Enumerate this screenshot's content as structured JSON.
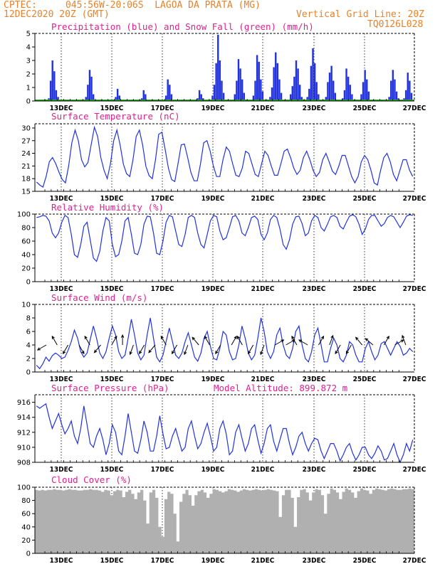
{
  "header": {
    "source": "CPTEC:",
    "location": "045:56W-20:06S  LAGOA DA PRATA (MG)",
    "run": "12DEC2020 20Z (GMT)",
    "grid_note": "Vertical Grid Line: 20Z",
    "model": "TQ0126L028"
  },
  "x_day_labels": [
    "13DEC",
    "15DEC",
    "17DEC",
    "19DEC",
    "21DEC",
    "23DEC",
    "25DEC",
    "27DEC"
  ],
  "colors": {
    "line": "#2233dd",
    "precip": "#2233dd",
    "snow": "#22aa22",
    "cloud": "#b0b0b0",
    "title": "#e0208f",
    "header": "#e8822a"
  },
  "chart_data": [
    {
      "type": "bar",
      "title": "Precipitation (blue) and Snow Fall (green) (mm/h)",
      "ylim": [
        0,
        5
      ],
      "yticks": [
        0,
        1,
        2,
        3,
        4,
        5
      ],
      "series": [
        {
          "name": "Precipitation",
          "values": [
            0,
            0,
            0,
            0,
            0,
            0,
            0,
            0.2,
            1.5,
            3.0,
            2.2,
            0.8,
            0.3,
            0,
            0,
            0,
            0,
            0,
            0,
            0,
            0,
            0,
            0,
            0,
            0,
            0,
            0,
            0.3,
            1.2,
            2.3,
            1.8,
            0.5,
            0,
            0,
            0,
            0,
            0,
            0,
            0,
            0,
            0,
            0,
            0,
            0.3,
            0.9,
            0.4,
            0,
            0,
            0,
            0,
            0,
            0,
            0,
            0,
            0,
            0,
            0,
            0.2,
            0.8,
            0.5,
            0,
            0,
            0,
            0,
            0,
            0,
            0,
            0,
            0,
            0.1,
            0.4,
            1.6,
            1.2,
            0.5,
            0,
            0,
            0,
            0,
            0,
            0,
            0,
            0,
            0,
            0,
            0,
            0,
            0,
            0.2,
            0.8,
            0.5,
            0.2,
            0,
            0,
            0,
            0,
            0.4,
            1.2,
            2.8,
            4.9,
            3.0,
            1.5,
            0.6,
            0,
            0,
            0,
            0,
            0,
            0.5,
            1.5,
            3.1,
            2.4,
            1.6,
            0.6,
            0,
            0,
            0,
            0,
            0.4,
            1.5,
            3.4,
            2.9,
            1.6,
            0.7,
            0,
            0,
            0,
            0.3,
            1.0,
            2.5,
            3.6,
            2.8,
            1.6,
            0.6,
            0,
            0,
            0,
            0.1,
            0.5,
            1.1,
            1.8,
            3.0,
            2.4,
            1.2,
            0.3,
            0,
            0,
            0.3,
            0.9,
            2.6,
            3.9,
            2.8,
            1.4,
            0.5,
            0,
            0,
            0,
            0.3,
            1.4,
            2.1,
            2.6,
            1.5,
            0.6,
            0,
            0,
            0,
            0.2,
            0.8,
            2.4,
            1.8,
            1.2,
            0.5,
            0,
            0,
            0,
            0.1,
            0.5,
            1.4,
            2.3,
            1.6,
            0.7,
            0,
            0,
            0,
            0,
            0,
            0,
            0,
            0,
            0,
            0,
            0.3,
            1.5,
            2.3,
            1.6,
            0.7,
            0.2,
            0,
            0,
            0.2,
            0.8,
            2.1,
            1.5,
            0.6,
            0
          ]
        },
        {
          "name": "Snow Fall",
          "values": [
            0
          ]
        }
      ]
    },
    {
      "type": "line",
      "title": "Surface Temperature (nC)",
      "ylim": [
        15,
        31
      ],
      "yticks": [
        15,
        18,
        21,
        24,
        27,
        30
      ],
      "series": [
        {
          "name": "",
          "values": [
            17.2,
            16.5,
            16.0,
            18.5,
            22.0,
            23.0,
            21.5,
            19.5,
            17.8,
            17.0,
            21.0,
            26.5,
            29.5,
            27.0,
            22.5,
            20.8,
            21.8,
            26.0,
            30.2,
            28.0,
            23.0,
            20.0,
            18.0,
            21.5,
            27.0,
            29.5,
            26.0,
            21.5,
            19.2,
            18.5,
            22.5,
            28.0,
            29.5,
            26.0,
            21.0,
            18.7,
            18.0,
            22.5,
            28.5,
            29.0,
            25.0,
            20.5,
            17.8,
            17.3,
            21.5,
            26.0,
            26.2,
            23.0,
            19.5,
            17.5,
            17.5,
            21.5,
            26.5,
            27.0,
            24.5,
            21.0,
            18.5,
            18.5,
            22.5,
            25.5,
            24.5,
            21.5,
            18.8,
            18.5,
            20.5,
            24.5,
            24.0,
            21.5,
            19.0,
            18.5,
            21.5,
            24.5,
            23.5,
            21.0,
            18.8,
            18.8,
            21.5,
            24.5,
            25.0,
            23.0,
            20.5,
            19.0,
            20.0,
            23.0,
            24.5,
            22.5,
            20.0,
            18.5,
            19.5,
            22.5,
            24.0,
            22.0,
            19.8,
            19.0,
            21.0,
            23.5,
            23.5,
            21.0,
            18.5,
            17.0,
            18.5,
            22.0,
            23.5,
            22.5,
            20.0,
            17.0,
            16.5,
            20.0,
            23.0,
            24.0,
            22.0,
            19.0,
            17.5,
            20.0,
            22.5,
            22.5,
            20.0,
            18.5
          ]
        }
      ]
    },
    {
      "type": "line",
      "title": "Relative Humidity (%)",
      "ylim": [
        0,
        100
      ],
      "yticks": [
        0,
        20,
        40,
        60,
        80,
        100
      ],
      "series": [
        {
          "name": "",
          "values": [
            95,
            96,
            98,
            97,
            90,
            72,
            65,
            72,
            88,
            98,
            95,
            70,
            40,
            36,
            55,
            82,
            88,
            62,
            35,
            30,
            45,
            75,
            95,
            90,
            55,
            37,
            40,
            60,
            90,
            95,
            70,
            42,
            40,
            55,
            85,
            97,
            96,
            72,
            42,
            40,
            60,
            88,
            98,
            96,
            75,
            55,
            52,
            70,
            95,
            98,
            95,
            72,
            55,
            50,
            70,
            90,
            98,
            96,
            75,
            62,
            65,
            80,
            96,
            98,
            90,
            72,
            68,
            80,
            95,
            97,
            92,
            70,
            62,
            72,
            92,
            98,
            95,
            78,
            55,
            48,
            62,
            85,
            96,
            97,
            86,
            68,
            72,
            90,
            98,
            95,
            80,
            75,
            85,
            96,
            98,
            95,
            82,
            78,
            88,
            97,
            99,
            96,
            85,
            70,
            78,
            92,
            98,
            98,
            90,
            82,
            86,
            95,
            98,
            96,
            88,
            80,
            88,
            97,
            99,
            98
          ]
        }
      ]
    },
    {
      "type": "line",
      "title": "Surface Wind (m/s)",
      "ylim": [
        0,
        10
      ],
      "yticks": [
        0,
        2,
        4,
        6,
        8,
        10
      ],
      "series": [
        {
          "name": "",
          "values": [
            1.0,
            0.5,
            1.2,
            2.2,
            1.6,
            2.4,
            2.8,
            2.5,
            2.0,
            2.2,
            3.2,
            4.5,
            6.2,
            5.0,
            3.0,
            2.2,
            2.8,
            4.8,
            6.8,
            5.0,
            2.8,
            2.0,
            3.0,
            5.0,
            6.8,
            5.5,
            3.0,
            2.0,
            2.5,
            5.0,
            7.8,
            5.5,
            2.8,
            1.8,
            2.5,
            5.5,
            8.0,
            5.0,
            2.2,
            1.5,
            2.5,
            4.5,
            6.5,
            4.5,
            2.5,
            2.0,
            2.8,
            4.5,
            5.8,
            4.0,
            2.2,
            1.6,
            2.8,
            5.0,
            6.0,
            3.8,
            2.0,
            1.8,
            3.5,
            6.0,
            5.5,
            3.0,
            1.8,
            2.0,
            4.0,
            6.8,
            5.0,
            2.8,
            1.8,
            2.5,
            5.0,
            8.0,
            6.0,
            3.0,
            2.0,
            3.0,
            5.5,
            6.5,
            4.0,
            2.5,
            2.0,
            3.5,
            6.0,
            6.8,
            4.0,
            2.0,
            1.5,
            3.0,
            5.5,
            6.5,
            4.0,
            1.5,
            1.5,
            3.5,
            5.0,
            4.0,
            2.0,
            1.5,
            2.5,
            4.5,
            4.0,
            2.5,
            1.5,
            1.5,
            3.5,
            4.5,
            3.0,
            1.8,
            2.5,
            4.2,
            4.5,
            3.5,
            2.5,
            3.5,
            4.5,
            3.8,
            2.5,
            2.8,
            3.5,
            3.0
          ]
        }
      ]
    },
    {
      "type": "line",
      "title": "Surface Pressure (hPa)",
      "ylim": [
        908,
        917
      ],
      "yticks": [
        908,
        910,
        912,
        914,
        916
      ],
      "series": [
        {
          "name": "",
          "values": [
            915.5,
            915.2,
            915.5,
            915.8,
            914.0,
            912.5,
            913.5,
            914.5,
            913.0,
            911.8,
            912.5,
            913.5,
            911.5,
            910.5,
            912.5,
            915.5,
            913.0,
            910.5,
            910.0,
            911.5,
            912.5,
            911.0,
            909.0,
            910.5,
            913.0,
            912.0,
            909.5,
            909.0,
            911.5,
            914.5,
            912.0,
            909.5,
            909.2,
            911.0,
            913.5,
            912.0,
            909.5,
            909.5,
            911.5,
            914.2,
            911.8,
            909.8,
            910.0,
            911.5,
            912.5,
            911.0,
            909.5,
            910.0,
            912.5,
            913.5,
            911.5,
            909.8,
            910.5,
            912.0,
            913.2,
            911.5,
            909.5,
            910.0,
            912.5,
            913.5,
            911.8,
            909.0,
            909.5,
            912.0,
            913.0,
            911.2,
            909.5,
            910.5,
            912.5,
            913.0,
            911.0,
            909.2,
            910.5,
            912.5,
            913.0,
            910.8,
            909.5,
            911.0,
            912.5,
            912.5,
            910.5,
            909.0,
            910.0,
            911.5,
            912.0,
            910.5,
            909.5,
            910.5,
            911.2,
            911.0,
            909.5,
            908.5,
            909.5,
            910.5,
            910.5,
            909.5,
            908.2,
            909.0,
            910.0,
            910.5,
            909.2,
            908.3,
            909.0,
            910.0,
            910.0,
            909.0,
            908.5,
            909.2,
            910.2,
            909.5,
            908.3,
            908.5,
            909.5,
            910.5,
            909.0,
            908.0,
            909.0,
            910.5,
            909.5,
            911.0
          ]
        }
      ],
      "note": "Model Altitude: 899.872 m"
    },
    {
      "type": "area",
      "title": "Cloud Cover (%)",
      "ylim": [
        0,
        100
      ],
      "yticks": [
        0,
        20,
        40,
        60,
        80,
        100
      ],
      "series": [
        {
          "name": "",
          "values": [
            96,
            95,
            96,
            95,
            96,
            96,
            97,
            96,
            96,
            95,
            96,
            97,
            96,
            96,
            95,
            95,
            96,
            96,
            97,
            96,
            96,
            95,
            93,
            96,
            95,
            88,
            94,
            96,
            95,
            85,
            93,
            96,
            90,
            82,
            92,
            96,
            80,
            45,
            92,
            96,
            84,
            40,
            25,
            82,
            93,
            90,
            60,
            18,
            78,
            90,
            96,
            88,
            72,
            88,
            94,
            96,
            92,
            84,
            90,
            97,
            96,
            94,
            92,
            94,
            97,
            96,
            95,
            93,
            95,
            97,
            96,
            95,
            96,
            97,
            96,
            95,
            96,
            97,
            96,
            95,
            94,
            55,
            88,
            96,
            96,
            84,
            40,
            85,
            96,
            97,
            92,
            80,
            92,
            97,
            96,
            88,
            60,
            90,
            98,
            96,
            92,
            82,
            93,
            98,
            96,
            92,
            84,
            94,
            98,
            96,
            95,
            90,
            96,
            98,
            97,
            96,
            95,
            97,
            98,
            97,
            96,
            96,
            97,
            97,
            98,
            97
          ]
        }
      ]
    }
  ]
}
